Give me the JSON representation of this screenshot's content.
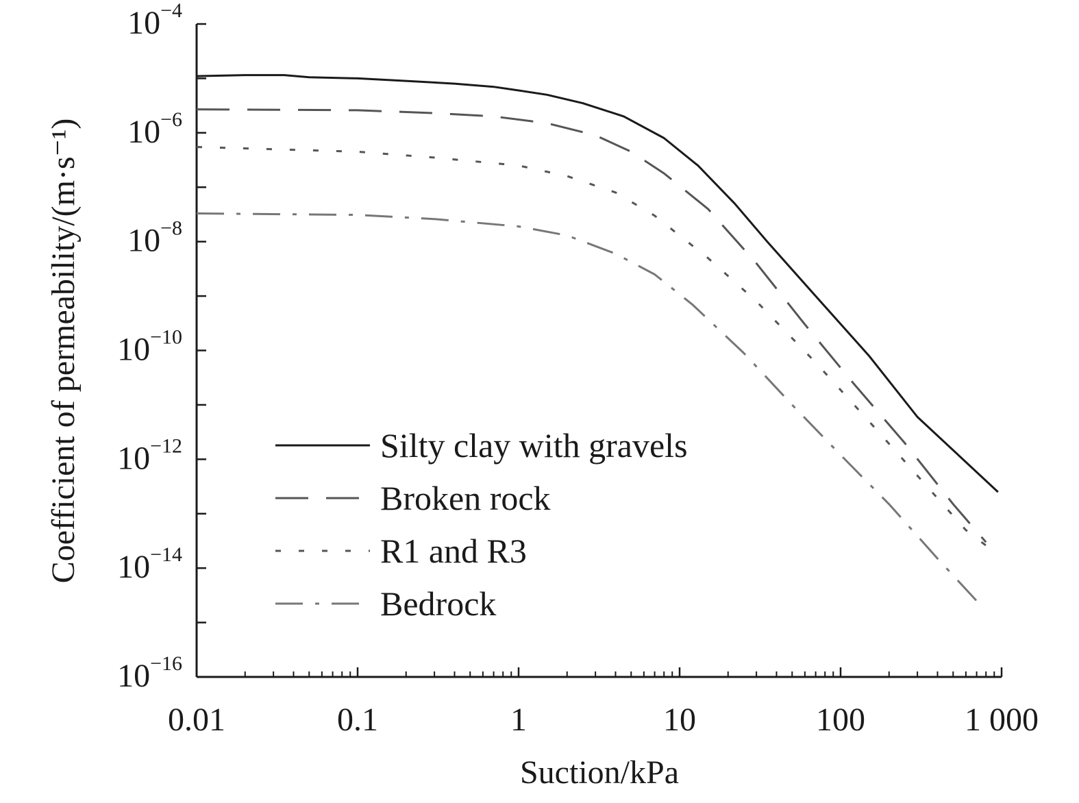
{
  "chart_data": {
    "type": "line",
    "title": "",
    "xlabel": "Suction/kPa",
    "ylabel": "Coefficient of permeability/(m·s⁻¹)",
    "xscale": "log",
    "yscale": "log",
    "xlim": [
      0.01,
      1000
    ],
    "ylim": [
      1e-16,
      0.0001
    ],
    "x_ticks": [
      0.01,
      0.1,
      1,
      10,
      100,
      1000
    ],
    "x_tick_labels": [
      "0.01",
      "0.1",
      "1",
      "10",
      "100",
      "1 000"
    ],
    "y_ticks": [
      0.0001,
      1e-06,
      1e-08,
      1e-10,
      1e-12,
      1e-14,
      1e-16
    ],
    "y_tick_labels": [
      {
        "base": "10",
        "exp": "−4"
      },
      {
        "base": "10",
        "exp": "−6"
      },
      {
        "base": "10",
        "exp": "−8"
      },
      {
        "base": "10",
        "exp": "−10"
      },
      {
        "base": "10",
        "exp": "−12"
      },
      {
        "base": "10",
        "exp": "−14"
      },
      {
        "base": "10",
        "exp": "−16"
      }
    ],
    "grid": false,
    "legend_position": "lower-left",
    "series": [
      {
        "name": "Silty clay with gravels",
        "style": "solid",
        "color": "#1a1a1a",
        "x": [
          0.01,
          0.02,
          0.035,
          0.05,
          0.1,
          0.2,
          0.4,
          0.7,
          1,
          1.5,
          2.5,
          4.5,
          8,
          13,
          22,
          35,
          70,
          150,
          300,
          950
        ],
        "y": [
          1.1e-05,
          1.15e-05,
          1.15e-05,
          1.05e-05,
          1e-05,
          9e-06,
          8e-06,
          7e-06,
          6e-06,
          5e-06,
          3.5e-06,
          2e-06,
          8e-07,
          2.5e-07,
          5e-08,
          1e-08,
          1e-09,
          8e-11,
          6e-12,
          2.5e-13
        ]
      },
      {
        "name": "Broken rock",
        "style": "long-dash",
        "color": "#555555",
        "x": [
          0.01,
          0.1,
          0.3,
          0.7,
          1.5,
          3,
          5,
          8,
          15,
          30,
          60,
          120,
          250,
          500,
          800
        ],
        "y": [
          2.7e-06,
          2.6e-06,
          2.3e-06,
          2e-06,
          1.5e-06,
          9e-07,
          4.5e-07,
          1.8e-07,
          4e-08,
          4e-09,
          3e-10,
          2.5e-11,
          2e-12,
          1.5e-13,
          3e-14
        ]
      },
      {
        "name": "R1 and R3",
        "style": "dotted",
        "color": "#555555",
        "x": [
          0.01,
          0.1,
          0.3,
          1,
          2,
          4,
          7,
          15,
          30,
          70,
          150,
          300,
          600,
          900
        ],
        "y": [
          5.5e-07,
          4.5e-07,
          3.5e-07,
          2.5e-07,
          1.6e-07,
          8e-08,
          3e-08,
          5e-09,
          8e-10,
          6e-11,
          5e-12,
          5e-13,
          5e-14,
          2e-14
        ]
      },
      {
        "name": "Bedrock",
        "style": "dash-dot",
        "color": "#777777",
        "x": [
          0.01,
          0.1,
          0.3,
          1,
          2,
          4,
          7,
          12,
          25,
          50,
          100,
          200,
          400,
          700
        ],
        "y": [
          3.3e-08,
          3.1e-08,
          2.6e-08,
          1.9e-08,
          1.3e-08,
          6e-09,
          2.5e-09,
          7e-10,
          9e-11,
          1e-11,
          1.2e-12,
          1.5e-13,
          1.5e-14,
          2.5e-15
        ]
      }
    ]
  }
}
